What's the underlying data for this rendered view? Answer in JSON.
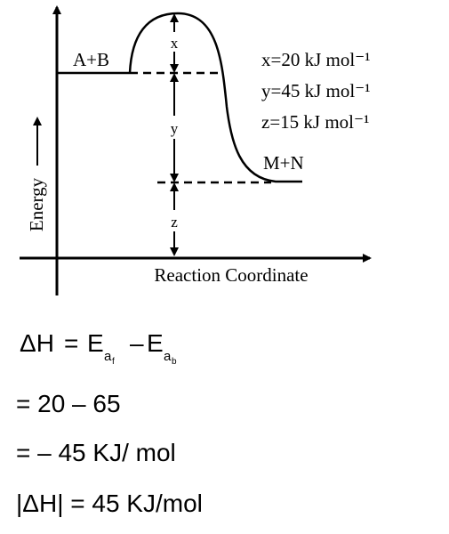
{
  "diagram": {
    "labels": {
      "x": "x",
      "y": "y",
      "z": "z",
      "reactants": "A+B",
      "products": "M+N",
      "y_axis": "Energy",
      "x_axis": "Reaction Coordinate"
    },
    "values": [
      "x=20 kJ mol⁻¹",
      "y=45 kJ mol⁻¹",
      "z=15 kJ mol⁻¹"
    ]
  },
  "solution": {
    "equation": {
      "lhs": "ΔH",
      "equals": "=",
      "term1": {
        "base": "E",
        "sub": "a",
        "subsub": "f"
      },
      "minus": "–",
      "term2": {
        "base": "E",
        "sub": "a",
        "subsub": "b"
      }
    },
    "lines": [
      "= 20 – 65",
      "= – 45 KJ/ mol",
      "|ΔH| = 45 KJ/mol"
    ]
  }
}
